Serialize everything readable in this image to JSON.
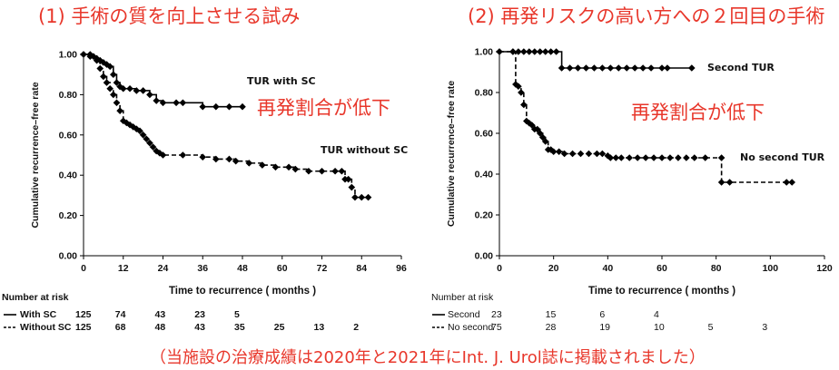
{
  "headings": {
    "left": "(1) 手術の質を向上させる試み",
    "right": "(2) 再発リスクの高い方への２回目の手術"
  },
  "callouts": {
    "left": "再発割合が低下",
    "right": "再発割合が低下"
  },
  "footnote": "（当施設の治療成績は2020年と2021年にInt. J. Urol誌に掲載されました）",
  "colors": {
    "accent": "#e8372b",
    "line": "#000000"
  },
  "chart_data": [
    {
      "type": "line",
      "subtype": "kaplan-meier",
      "ylabel": "Cumulative recurrence–free  rate",
      "xlabel": "Time to recurrence ( months )",
      "xlim": [
        0,
        96
      ],
      "ylim": [
        0,
        1.0
      ],
      "xticks": [
        0,
        12,
        24,
        36,
        48,
        60,
        72,
        84,
        96
      ],
      "yticks": [
        0.0,
        0.2,
        0.4,
        0.6,
        0.8,
        1.0
      ],
      "series": [
        {
          "name": "TUR with SC",
          "style": "solid",
          "points": [
            [
              0,
              1.0
            ],
            [
              2,
              1.0
            ],
            [
              3,
              0.99
            ],
            [
              4,
              0.98
            ],
            [
              5,
              0.97
            ],
            [
              6,
              0.96
            ],
            [
              7,
              0.95
            ],
            [
              8,
              0.94
            ],
            [
              9,
              0.9
            ],
            [
              10,
              0.86
            ],
            [
              11,
              0.84
            ],
            [
              12,
              0.83
            ],
            [
              14,
              0.83
            ],
            [
              16,
              0.82
            ],
            [
              18,
              0.82
            ],
            [
              20,
              0.8
            ],
            [
              22,
              0.77
            ],
            [
              24,
              0.76
            ],
            [
              28,
              0.76
            ],
            [
              30,
              0.76
            ],
            [
              36,
              0.74
            ],
            [
              40,
              0.74
            ],
            [
              44,
              0.74
            ],
            [
              48,
              0.74
            ]
          ]
        },
        {
          "name": "TUR without SC",
          "style": "dashed",
          "points": [
            [
              0,
              1.0
            ],
            [
              2,
              0.99
            ],
            [
              4,
              0.97
            ],
            [
              5,
              0.93
            ],
            [
              6,
              0.89
            ],
            [
              7,
              0.86
            ],
            [
              8,
              0.83
            ],
            [
              9,
              0.8
            ],
            [
              10,
              0.76
            ],
            [
              11,
              0.72
            ],
            [
              12,
              0.67
            ],
            [
              13,
              0.66
            ],
            [
              14,
              0.65
            ],
            [
              15,
              0.64
            ],
            [
              16,
              0.63
            ],
            [
              17,
              0.62
            ],
            [
              18,
              0.6
            ],
            [
              19,
              0.58
            ],
            [
              20,
              0.56
            ],
            [
              21,
              0.54
            ],
            [
              22,
              0.52
            ],
            [
              23,
              0.51
            ],
            [
              24,
              0.5
            ],
            [
              30,
              0.5
            ],
            [
              36,
              0.49
            ],
            [
              40,
              0.48
            ],
            [
              44,
              0.48
            ],
            [
              46,
              0.47
            ],
            [
              50,
              0.46
            ],
            [
              54,
              0.45
            ],
            [
              58,
              0.44
            ],
            [
              62,
              0.44
            ],
            [
              64,
              0.43
            ],
            [
              68,
              0.42
            ],
            [
              72,
              0.42
            ],
            [
              76,
              0.42
            ],
            [
              78,
              0.42
            ],
            [
              79,
              0.38
            ],
            [
              80,
              0.38
            ],
            [
              81,
              0.34
            ],
            [
              82,
              0.29
            ],
            [
              84,
              0.29
            ],
            [
              86,
              0.29
            ]
          ]
        }
      ],
      "series_labels": [
        "TUR with SC",
        "TUR without SC"
      ],
      "risk_table": {
        "title": "Number at risk",
        "rows": [
          {
            "label": "With SC",
            "style": "solid",
            "values": [
              "125",
              "74",
              "43",
              "23",
              "5"
            ]
          },
          {
            "label": "Without SC",
            "style": "dashed",
            "values": [
              "125",
              "68",
              "48",
              "43",
              "35",
              "25",
              "13",
              "2"
            ]
          }
        ]
      }
    },
    {
      "type": "line",
      "subtype": "kaplan-meier",
      "ylabel": "Cumulative recurrence–free  rate",
      "xlabel": "Time to recurrence ( months )",
      "xlim": [
        0,
        120
      ],
      "ylim": [
        0,
        1.0
      ],
      "xticks": [
        0,
        20,
        40,
        60,
        80,
        100,
        120
      ],
      "yticks": [
        0.0,
        0.2,
        0.4,
        0.6,
        0.8,
        1.0
      ],
      "series": [
        {
          "name": "Second TUR",
          "style": "solid",
          "points": [
            [
              0,
              1.0
            ],
            [
              5,
              1.0
            ],
            [
              7,
              1.0
            ],
            [
              9,
              1.0
            ],
            [
              11,
              1.0
            ],
            [
              13,
              1.0
            ],
            [
              15,
              1.0
            ],
            [
              17,
              1.0
            ],
            [
              19,
              1.0
            ],
            [
              21,
              1.0
            ],
            [
              23,
              0.92
            ],
            [
              26,
              0.92
            ],
            [
              29,
              0.92
            ],
            [
              32,
              0.92
            ],
            [
              35,
              0.92
            ],
            [
              38,
              0.92
            ],
            [
              41,
              0.92
            ],
            [
              44,
              0.92
            ],
            [
              47,
              0.92
            ],
            [
              50,
              0.92
            ],
            [
              53,
              0.92
            ],
            [
              56,
              0.92
            ],
            [
              60,
              0.92
            ],
            [
              62,
              0.92
            ],
            [
              71,
              0.92
            ]
          ]
        },
        {
          "name": "No second TUR",
          "style": "dashed",
          "points": [
            [
              0,
              1.0
            ],
            [
              5,
              1.0
            ],
            [
              6,
              0.84
            ],
            [
              7,
              0.83
            ],
            [
              8,
              0.8
            ],
            [
              9,
              0.74
            ],
            [
              10,
              0.66
            ],
            [
              11,
              0.65
            ],
            [
              12,
              0.64
            ],
            [
              13,
              0.62
            ],
            [
              14,
              0.62
            ],
            [
              15,
              0.6
            ],
            [
              16,
              0.58
            ],
            [
              17,
              0.56
            ],
            [
              18,
              0.52
            ],
            [
              19,
              0.52
            ],
            [
              20,
              0.51
            ],
            [
              22,
              0.51
            ],
            [
              24,
              0.5
            ],
            [
              27,
              0.5
            ],
            [
              30,
              0.5
            ],
            [
              33,
              0.5
            ],
            [
              36,
              0.5
            ],
            [
              38,
              0.5
            ],
            [
              40,
              0.49
            ],
            [
              41,
              0.48
            ],
            [
              43,
              0.48
            ],
            [
              45,
              0.48
            ],
            [
              48,
              0.48
            ],
            [
              51,
              0.48
            ],
            [
              54,
              0.48
            ],
            [
              57,
              0.48
            ],
            [
              60,
              0.48
            ],
            [
              63,
              0.48
            ],
            [
              66,
              0.48
            ],
            [
              69,
              0.48
            ],
            [
              72,
              0.48
            ],
            [
              76,
              0.48
            ],
            [
              82,
              0.48
            ],
            [
              82,
              0.36
            ],
            [
              85,
              0.36
            ],
            [
              106,
              0.36
            ],
            [
              108,
              0.36
            ]
          ]
        }
      ],
      "series_labels": [
        "Second TUR",
        "No second TUR"
      ],
      "risk_table": {
        "title": "Number at risk",
        "rows": [
          {
            "label": "Second",
            "style": "solid",
            "values": [
              "23",
              "15",
              "6",
              "4"
            ]
          },
          {
            "label": "No second",
            "style": "dashed",
            "values": [
              "75",
              "28",
              "19",
              "10",
              "5",
              "3"
            ]
          }
        ]
      }
    }
  ]
}
